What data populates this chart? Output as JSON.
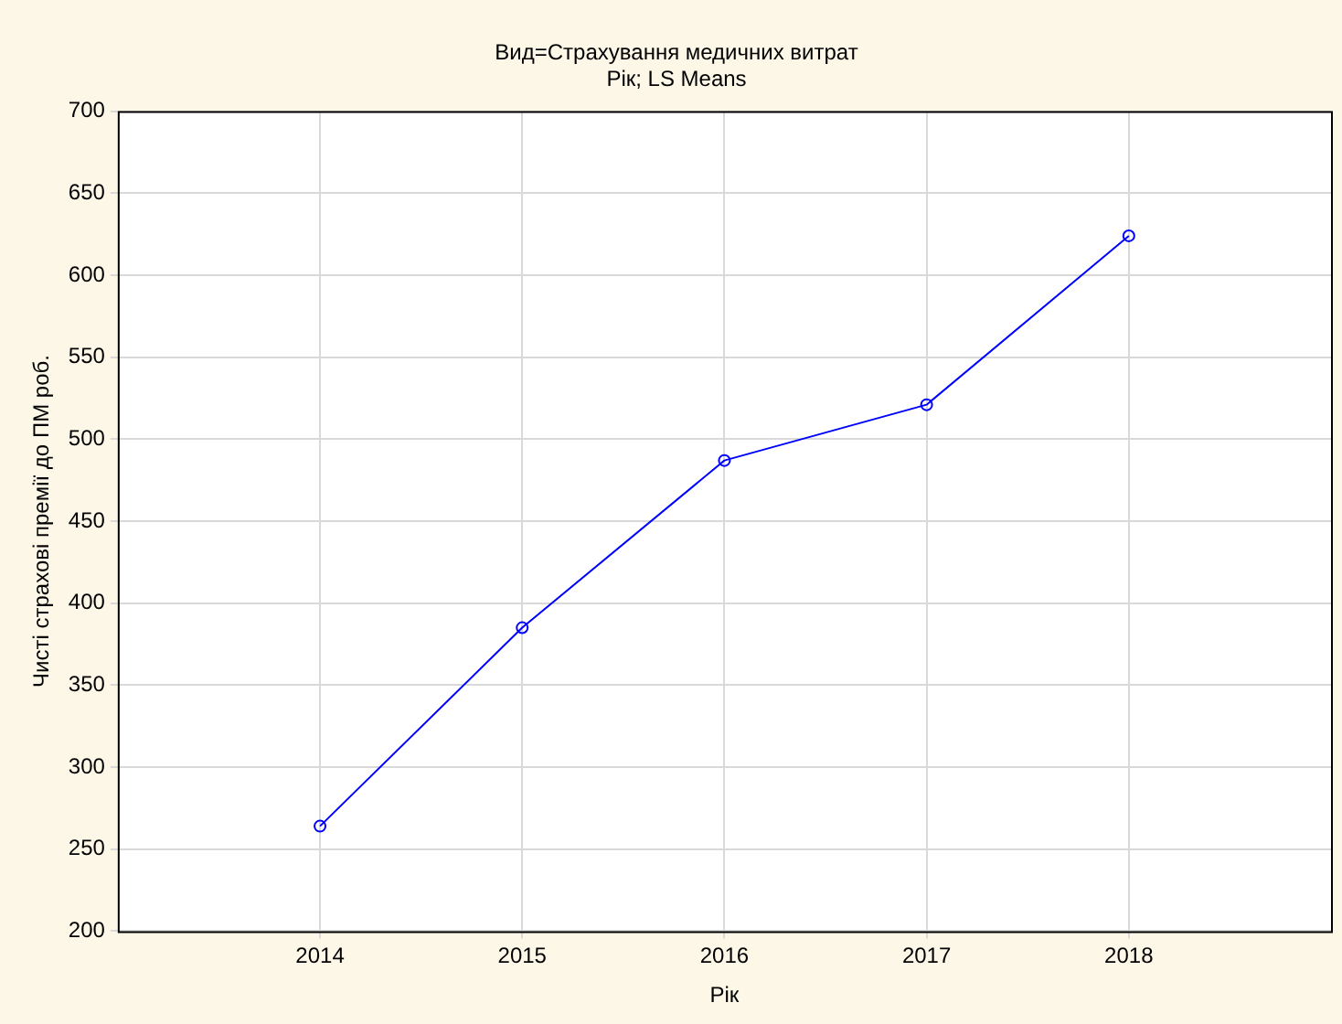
{
  "chart_data": {
    "type": "line",
    "title": "Вид=Страхування медичних витрат",
    "subtitle": "Рік; LS Means",
    "xlabel": "Рік",
    "ylabel": "Чисті страхові премії до ПМ роб.",
    "x": [
      2014,
      2015,
      2016,
      2017,
      2018
    ],
    "series": [
      {
        "color": "#0000ff",
        "values": [
          264,
          385,
          487,
          521,
          624
        ]
      }
    ],
    "xlim": [
      2013,
      2019
    ],
    "xticks": [
      2014,
      2015,
      2016,
      2017,
      2018
    ],
    "ylim": [
      200,
      700
    ],
    "yticks": [
      200,
      250,
      300,
      350,
      400,
      450,
      500,
      550,
      600,
      650,
      700
    ],
    "grid": true,
    "legend": false,
    "marker": "circle",
    "line_style": "solid"
  }
}
